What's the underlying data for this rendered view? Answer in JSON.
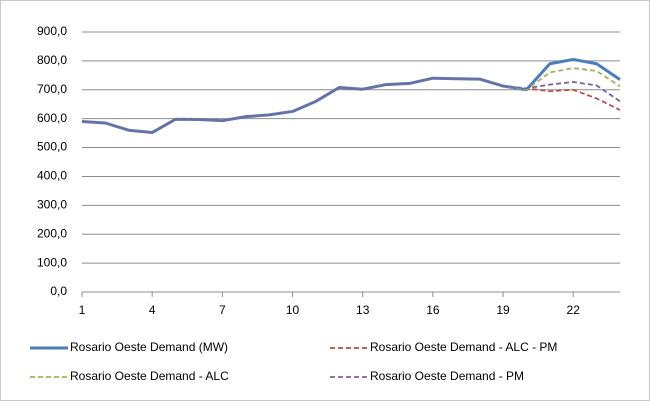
{
  "chart_data": {
    "type": "line",
    "x": [
      1,
      2,
      3,
      4,
      5,
      6,
      7,
      8,
      9,
      10,
      11,
      12,
      13,
      14,
      15,
      16,
      17,
      18,
      19,
      20,
      21,
      22,
      23,
      24
    ],
    "xlim": [
      1,
      24
    ],
    "xticks": [
      1,
      4,
      7,
      10,
      13,
      16,
      19,
      22
    ],
    "ylim": [
      0,
      900
    ],
    "yticks": [
      {
        "value": 0,
        "label": "0,0"
      },
      {
        "value": 100,
        "label": "100,0"
      },
      {
        "value": 200,
        "label": "200,0"
      },
      {
        "value": 300,
        "label": "300,0"
      },
      {
        "value": 400,
        "label": "400,0"
      },
      {
        "value": 500,
        "label": "500,0"
      },
      {
        "value": 600,
        "label": "600,0"
      },
      {
        "value": 700,
        "label": "700,0"
      },
      {
        "value": 800,
        "label": "800,0"
      },
      {
        "value": 900,
        "label": "900,0"
      }
    ],
    "grid": true,
    "series": [
      {
        "name": "Rosario Oeste Demand (MW)",
        "color": "#4a7ebb",
        "dashed": false,
        "values": [
          590,
          585,
          560,
          552,
          598,
          597,
          593,
          607,
          613,
          625,
          660,
          708,
          702,
          718,
          722,
          740,
          738,
          737,
          713,
          700,
          790,
          805,
          790,
          735
        ]
      },
      {
        "name": "Rosario Oeste Demand - ALC - PM",
        "color": "#be4b48",
        "dashed": true,
        "values": [
          590,
          585,
          560,
          552,
          598,
          597,
          593,
          607,
          613,
          625,
          660,
          708,
          702,
          718,
          722,
          740,
          738,
          737,
          713,
          705,
          695,
          700,
          670,
          630
        ]
      },
      {
        "name": "Rosario Oeste Demand - ALC",
        "color": "#98b954",
        "dashed": true,
        "values": [
          590,
          585,
          560,
          552,
          598,
          597,
          593,
          607,
          613,
          625,
          660,
          708,
          702,
          718,
          722,
          740,
          738,
          737,
          713,
          700,
          760,
          775,
          765,
          712
        ]
      },
      {
        "name": "Rosario Oeste Demand - PM",
        "color": "#7d60a0",
        "dashed": true,
        "values": [
          590,
          585,
          560,
          552,
          598,
          597,
          593,
          607,
          613,
          625,
          660,
          708,
          702,
          718,
          722,
          740,
          738,
          737,
          713,
          705,
          718,
          727,
          715,
          660
        ]
      }
    ]
  }
}
